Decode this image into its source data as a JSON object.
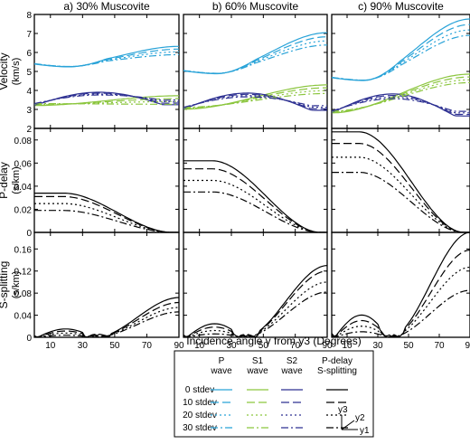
{
  "chart_data": {
    "type": "line",
    "columns": [
      {
        "title": "a) 30% Muscovite",
        "mix": 0.3
      },
      {
        "title": "b) 60% Muscovite",
        "mix": 0.6
      },
      {
        "title": "c) 90% Muscovite",
        "mix": 0.9
      }
    ],
    "rows": [
      {
        "key": "velocity",
        "ylabel": "Velocity",
        "yunit": "(km/s)",
        "ylim": [
          2,
          8
        ],
        "yticks": [
          "2",
          "3",
          "4",
          "5",
          "6",
          "7",
          "8"
        ]
      },
      {
        "key": "pdelay",
        "ylabel": "P-delay",
        "yunit": "(s/km)",
        "ylim": [
          0,
          0.09
        ],
        "yticks": [
          "0",
          "0.02",
          "0.04",
          "0.06",
          "0.08"
        ]
      },
      {
        "key": "ssplit",
        "ylabel": "S-splitting",
        "yunit": "(s/km)",
        "ylim": [
          0,
          0.19
        ],
        "yticks": [
          "0",
          "0.04",
          "0.08",
          "0.12",
          "0.16"
        ]
      }
    ],
    "xlabel": "Incidence angle γ from y3 (Degrees)",
    "xlim": [
      0,
      90
    ],
    "xticks": [
      "10",
      "30",
      "50",
      "70",
      "90"
    ],
    "colors": {
      "P": "#29a3d8",
      "S1": "#8cc63f",
      "S2": "#2e3192",
      "delay": "#000000"
    },
    "stdev_levels": [
      0,
      10,
      20,
      30
    ],
    "approx_values": {
      "velocity_0stdev": {
        "a": {
          "P_at_0": 5.5,
          "P_at_90": 6.7,
          "S1_at_90": 4.0,
          "S2_at_90": 3.3
        },
        "b": {
          "P_at_0": 5.0,
          "P_at_90": 7.3,
          "S1_at_90": 4.6,
          "S2_at_90": 2.9
        },
        "c": {
          "P_at_0": 4.7,
          "P_at_90": 7.8,
          "S1_at_90": 4.9,
          "S2_at_90": 2.6
        }
      },
      "pdelay_at_0": {
        "a": [
          0.034,
          0.031,
          0.025,
          0.019
        ],
        "b": [
          0.062,
          0.055,
          0.045,
          0.035
        ],
        "c": [
          0.087,
          0.077,
          0.065,
          0.052
        ]
      },
      "ssplit_at_90": {
        "a": [
          0.072,
          0.063,
          0.054,
          0.046
        ],
        "b": [
          0.13,
          0.12,
          0.1,
          0.082
        ],
        "c": [
          0.19,
          0.158,
          0.127,
          0.085
        ]
      }
    }
  },
  "legend": {
    "headers": [
      "P wave",
      "S1 wave",
      "S2 wave",
      "P-delay S-splitting"
    ],
    "header_lines": [
      [
        "P",
        "wave"
      ],
      [
        "S1",
        "wave"
      ],
      [
        "S2",
        "wave"
      ],
      [
        "P-delay",
        "S-splitting"
      ]
    ],
    "rows": [
      "0 stdev",
      "10 stdev",
      "20 stdev",
      "30 stdev"
    ]
  },
  "axes_icon": {
    "y3": "y3",
    "y2": "y2",
    "y1": "y1"
  }
}
